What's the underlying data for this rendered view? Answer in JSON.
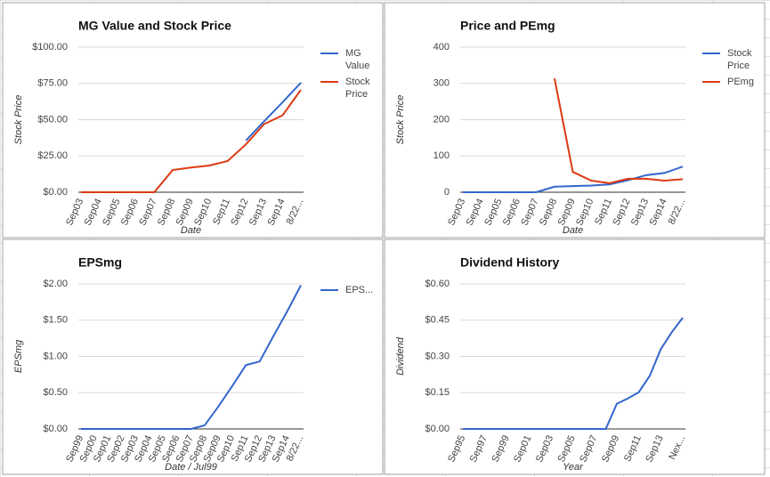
{
  "chart_data": [
    {
      "type": "line",
      "title": "MG Value and Stock Price",
      "y_label": "Stock Price",
      "x_label": "Date",
      "categories": [
        "Sep03",
        "Sep04",
        "Sep05",
        "Sep06",
        "Sep07",
        "Sep08",
        "Sep09",
        "Sep10",
        "Sep11",
        "Sep12",
        "Sep13",
        "Sep14",
        "8/22..."
      ],
      "series": [
        {
          "name": "MG Value",
          "color": "#3366cc",
          "values": [
            null,
            null,
            null,
            null,
            null,
            null,
            null,
            null,
            null,
            35.6,
            49,
            62,
            75.5
          ]
        },
        {
          "name": "Stock Price",
          "color": "#dc3912",
          "values": [
            0,
            0,
            0,
            0,
            0,
            15.3,
            17,
            18.4,
            21.5,
            33,
            47,
            53,
            70.6
          ]
        }
      ],
      "ylim": [
        0,
        100
      ],
      "yticks": [
        {
          "value": 0,
          "label": "$0.00"
        },
        {
          "value": 25,
          "label": "$25.00"
        },
        {
          "value": 50,
          "label": "$50.00"
        },
        {
          "value": 75,
          "label": "$75.00"
        },
        {
          "value": 100,
          "label": "$100.00"
        }
      ],
      "grid": true,
      "legend": "right"
    },
    {
      "type": "line",
      "title": "Price and PEmg",
      "y_label": "Stock Price",
      "x_label": "Date",
      "categories": [
        "Sep03",
        "Sep04",
        "Sep05",
        "Sep06",
        "Sep07",
        "Sep08",
        "Sep09",
        "Sep10",
        "Sep11",
        "Sep12",
        "Sep13",
        "Sep14",
        "8/22..."
      ],
      "series": [
        {
          "name": "Stock Price",
          "color": "#3366cc",
          "values": [
            0,
            0,
            0,
            0,
            0,
            15.3,
            17,
            18.4,
            21.5,
            33,
            47,
            53,
            70.6
          ]
        },
        {
          "name": "PEmg",
          "color": "#dc3912",
          "values": [
            null,
            null,
            null,
            null,
            null,
            314,
            56,
            32,
            25,
            37,
            37,
            32,
            36
          ]
        }
      ],
      "ylim": [
        0,
        400
      ],
      "yticks": [
        0,
        100,
        200,
        300,
        400
      ],
      "grid": true,
      "legend": "right"
    },
    {
      "type": "line",
      "title": "EPSmg",
      "y_label": "EPSmg",
      "x_label": "Date / Jul99",
      "categories": [
        "Sep99",
        "Sep00",
        "Sep01",
        "Sep02",
        "Sep03",
        "Sep04",
        "Sep05",
        "Sep06",
        "Sep07",
        "Sep08",
        "Sep09",
        "Sep10",
        "Sep11",
        "Sep12",
        "Sep13",
        "Sep14",
        "8/22..."
      ],
      "series": [
        {
          "name": "EPS...",
          "color": "#3366cc",
          "values": [
            0,
            0,
            0,
            0,
            0,
            0,
            0,
            0,
            0,
            0.05,
            0.31,
            0.59,
            0.88,
            0.93,
            1.28,
            1.62,
            1.98
          ]
        }
      ],
      "ylim": [
        0,
        2
      ],
      "yticks": [
        {
          "value": 0,
          "label": "$0.00"
        },
        {
          "value": 0.5,
          "label": "$0.50"
        },
        {
          "value": 1,
          "label": "$1.00"
        },
        {
          "value": 1.5,
          "label": "$1.50"
        },
        {
          "value": 2,
          "label": "$2.00"
        }
      ],
      "grid": true,
      "legend": "right"
    },
    {
      "type": "line",
      "title": "Dividend History",
      "y_label": "Dividend",
      "x_label": "Year",
      "categories": [
        "Sep95",
        null,
        "Sep97",
        null,
        "Sep99",
        null,
        "Sep01",
        null,
        "Sep03",
        null,
        "Sep05",
        null,
        "Sep07",
        null,
        "Sep09",
        null,
        "Sep11",
        null,
        "Sep13",
        null,
        "Nex..."
      ],
      "series": [
        {
          "color": "#3366cc",
          "values": [
            0,
            0,
            0,
            0,
            0,
            0,
            0,
            0,
            0,
            0,
            0,
            0,
            0,
            0,
            0.104,
            0.126,
            0.152,
            0.22,
            0.33,
            0.4,
            0.46
          ]
        }
      ],
      "ylim": [
        0,
        0.6
      ],
      "yticks": [
        {
          "value": 0,
          "label": "$0.00"
        },
        {
          "value": 0.15,
          "label": "$0.15"
        },
        {
          "value": 0.3,
          "label": "$0.30"
        },
        {
          "value": 0.45,
          "label": "$0.45"
        },
        {
          "value": 0.6,
          "label": "$0.60"
        }
      ],
      "grid": true
    }
  ]
}
